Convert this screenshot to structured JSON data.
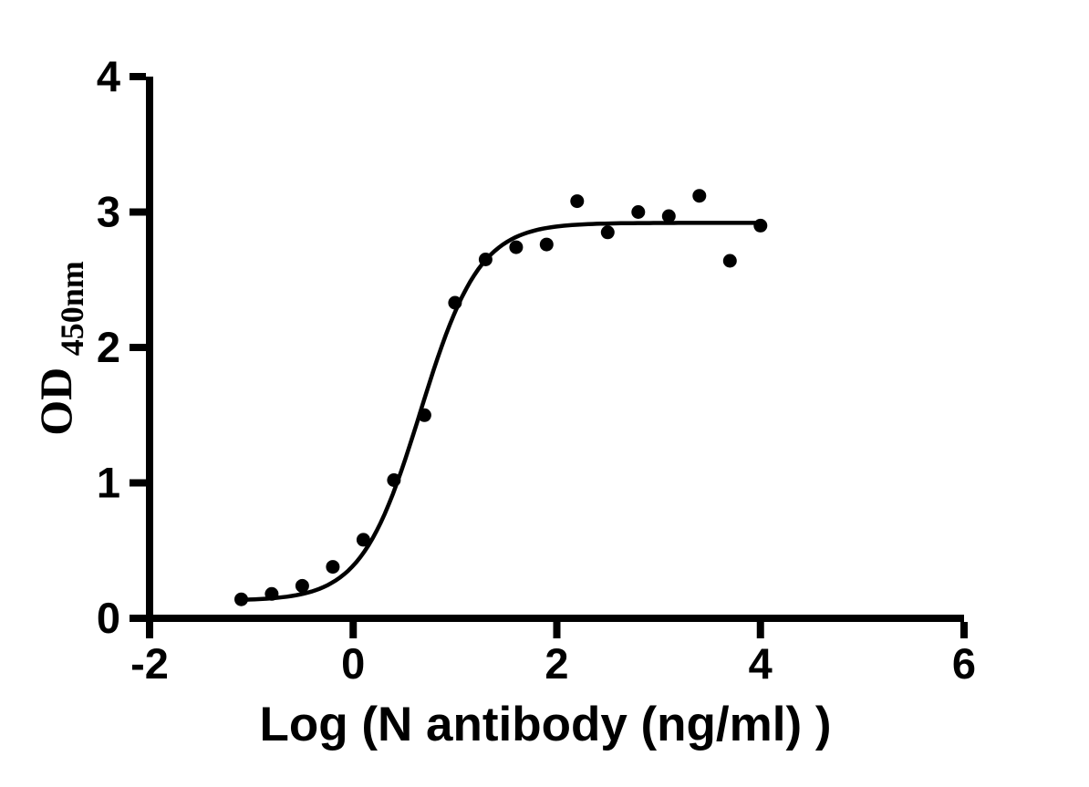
{
  "chart_data": {
    "type": "scatter",
    "description": "ELISA sigmoidal dose-response binding curve (scatter points with 4PL fitted line)",
    "xlabel": "Log (N antibody (ng/ml) )",
    "ylabel_main": "OD",
    "ylabel_sub": "450nm",
    "xlim": [
      -2,
      6
    ],
    "ylim": [
      0,
      4
    ],
    "xticks": [
      "-2",
      "0",
      "2",
      "4",
      "6"
    ],
    "xtick_values": [
      -2,
      0,
      2,
      4,
      6
    ],
    "yticks": [
      "0",
      "1",
      "2",
      "3",
      "4"
    ],
    "ytick_values": [
      0,
      1,
      2,
      3,
      4
    ],
    "grid": false,
    "legend": false,
    "background_color": "#ffffff",
    "axis_color": "#000000",
    "marker_color": "#000000",
    "curve_color": "#000000",
    "points": [
      {
        "x": -1.1,
        "y": 0.14
      },
      {
        "x": -0.8,
        "y": 0.18
      },
      {
        "x": -0.5,
        "y": 0.24
      },
      {
        "x": -0.2,
        "y": 0.38
      },
      {
        "x": 0.1,
        "y": 0.58
      },
      {
        "x": 0.4,
        "y": 1.02
      },
      {
        "x": 0.7,
        "y": 1.5
      },
      {
        "x": 1.0,
        "y": 2.33
      },
      {
        "x": 1.3,
        "y": 2.65
      },
      {
        "x": 1.6,
        "y": 2.74
      },
      {
        "x": 1.9,
        "y": 2.76
      },
      {
        "x": 2.2,
        "y": 3.08
      },
      {
        "x": 2.5,
        "y": 2.85
      },
      {
        "x": 2.8,
        "y": 3.0
      },
      {
        "x": 3.1,
        "y": 2.97
      },
      {
        "x": 3.4,
        "y": 3.12
      },
      {
        "x": 3.7,
        "y": 2.64
      },
      {
        "x": 4.0,
        "y": 2.9
      }
    ],
    "fit": {
      "model": "4PL-sigmoid",
      "bottom": 0.13,
      "top": 2.92,
      "logEC50": 0.66,
      "hill": 1.5,
      "xstart": -1.13,
      "xend": 4.03
    }
  }
}
